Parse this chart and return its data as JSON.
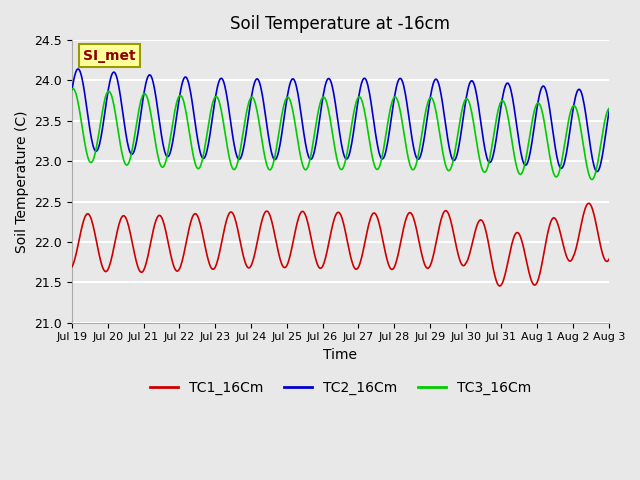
{
  "title": "Soil Temperature at -16cm",
  "xlabel": "Time",
  "ylabel": "Soil Temperature (C)",
  "ylim": [
    21.0,
    24.5
  ],
  "yticks": [
    21.0,
    21.5,
    22.0,
    22.5,
    23.0,
    23.5,
    24.0,
    24.5
  ],
  "background_color": "#e8e8e8",
  "plot_bg_color": "#e8e8e8",
  "grid_color": "white",
  "series": [
    {
      "name": "TC1_16Cm",
      "color": "#cc0000"
    },
    {
      "name": "TC2_16Cm",
      "color": "#0000cc"
    },
    {
      "name": "TC3_16Cm",
      "color": "#00cc00"
    }
  ],
  "xtick_labels": [
    "Jul 19",
    "Jul 20",
    "Jul 21",
    "Jul 22",
    "Jul 23",
    "Jul 24",
    "Jul 25",
    "Jul 26",
    "Jul 27",
    "Jul 28",
    "Jul 29",
    "Jul 30",
    "Jul 31",
    "Aug 1",
    "Aug 2",
    "Aug 3"
  ],
  "annotation_text": "SI_met",
  "annotation_color": "#8b0000",
  "annotation_bg": "#ffff99",
  "annotation_border": "#999900",
  "n_days": 16,
  "dt_hours": 0.5,
  "tc1_base": 22.1,
  "tc1_amp": 0.35,
  "tc1_phase": -1.2,
  "tc2_base": 23.65,
  "tc2_amp": 0.5,
  "tc2_phase": 0.5,
  "tc3_base": 23.45,
  "tc3_amp": 0.45,
  "tc3_phase": 1.4
}
